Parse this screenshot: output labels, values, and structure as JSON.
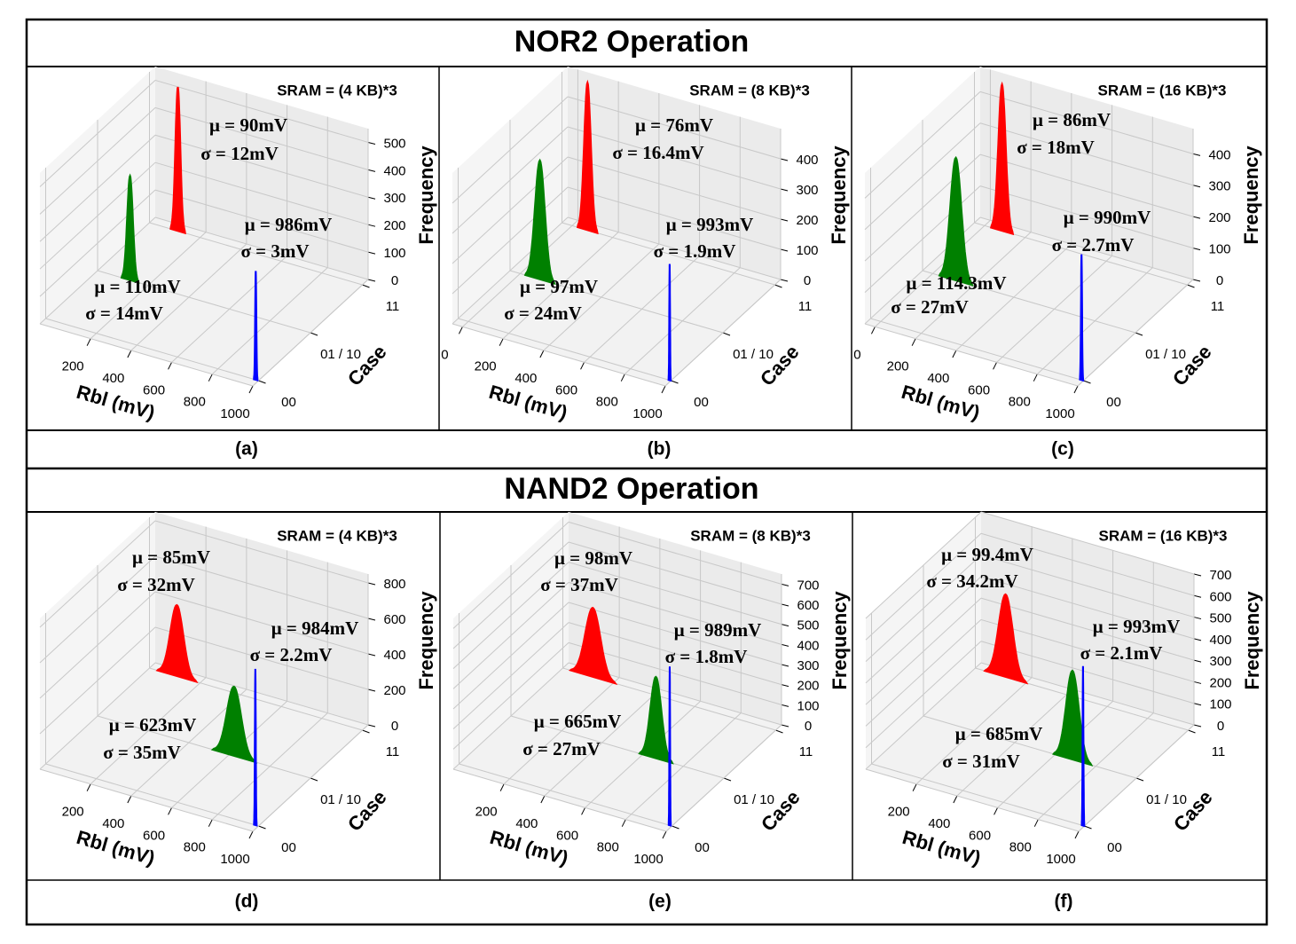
{
  "row_titles": [
    "NOR2 Operation",
    "NAND2 Operation"
  ],
  "chart_data": [
    {
      "type": "histogram3d",
      "caption": "(a)",
      "title": "SRAM = (4 KB)*3",
      "xlabel": "Rbl (mV)",
      "ylabel": "Case",
      "zlabel": "Frequency",
      "xlim": [
        -50,
        1000
      ],
      "xticks": [
        200,
        400,
        600,
        800,
        1000
      ],
      "ycategories": [
        "00",
        "01 / 10",
        "11"
      ],
      "zlim": [
        0,
        550
      ],
      "zticks": [
        0,
        100,
        200,
        300,
        400,
        500
      ],
      "series": [
        {
          "color": "#0000ff",
          "mean": 986,
          "sigma": 3,
          "peak": 397,
          "value_labels": [
            "μ = 986mV",
            "σ = 3mV"
          ]
        },
        {
          "color": "#008000",
          "mean": 110,
          "sigma": 14,
          "peak": 380,
          "value_labels": [
            "μ = 110mV",
            "σ = 14mV"
          ]
        },
        {
          "color": "#ff0000",
          "mean": 90,
          "sigma": 12,
          "peak": 525,
          "value_labels": [
            "μ = 90mV",
            "σ = 12mV"
          ]
        }
      ]
    },
    {
      "type": "histogram3d",
      "caption": "(b)",
      "title": "SRAM = (8 KB)*3",
      "xlabel": "Rbl (mV)",
      "ylabel": "Case",
      "zlabel": "Frequency",
      "xlim": [
        -50,
        1000
      ],
      "xticks": [
        0,
        200,
        400,
        600,
        800,
        1000
      ],
      "ycategories": [
        "00",
        "01 / 10",
        "11"
      ],
      "zlim": [
        0,
        500
      ],
      "zticks": [
        0,
        100,
        200,
        300,
        400
      ],
      "series": [
        {
          "color": "#0000ff",
          "mean": 993,
          "sigma": 1.9,
          "peak": 385,
          "value_labels": [
            "μ = 993mV",
            "σ = 1.9mV"
          ]
        },
        {
          "color": "#008000",
          "mean": 97,
          "sigma": 24,
          "peak": 394,
          "value_labels": [
            "μ = 97mV",
            "σ = 24mV"
          ]
        },
        {
          "color": "#ff0000",
          "mean": 76,
          "sigma": 16.4,
          "peak": 489,
          "value_labels": [
            "μ = 76mV",
            "σ = 16.4mV"
          ]
        }
      ]
    },
    {
      "type": "histogram3d",
      "caption": "(c)",
      "title": "SRAM = (16 KB)*3",
      "xlabel": "Rbl (mV)",
      "ylabel": "Case",
      "zlabel": "Frequency",
      "xlim": [
        -50,
        1000
      ],
      "xticks": [
        0,
        200,
        400,
        600,
        800,
        1000
      ],
      "ycategories": [
        "00",
        "01 / 10",
        "11"
      ],
      "zlim": [
        0,
        480
      ],
      "zticks": [
        0,
        100,
        200,
        300,
        400
      ],
      "series": [
        {
          "color": "#0000ff",
          "mean": 990,
          "sigma": 2.7,
          "peak": 400,
          "value_labels": [
            "μ = 990mV",
            "σ = 2.7mV"
          ]
        },
        {
          "color": "#008000",
          "mean": 114.3,
          "sigma": 27,
          "peak": 390,
          "value_labels": [
            "μ = 114.3mV",
            "σ = 27mV"
          ]
        },
        {
          "color": "#ff0000",
          "mean": 86,
          "sigma": 18,
          "peak": 466,
          "value_labels": [
            "μ = 86mV",
            "σ = 18mV"
          ]
        }
      ]
    },
    {
      "type": "histogram3d",
      "caption": "(d)",
      "title": "SRAM = (4 KB)*3",
      "xlabel": "Rbl (mV)",
      "ylabel": "Case",
      "zlabel": "Frequency",
      "xlim": [
        -50,
        1000
      ],
      "xticks": [
        200,
        400,
        600,
        800,
        1000
      ],
      "ycategories": [
        "00",
        "01 / 10",
        "11"
      ],
      "zlim": [
        0,
        850
      ],
      "zticks": [
        0,
        200,
        400,
        600,
        800
      ],
      "series": [
        {
          "color": "#0000ff",
          "mean": 984,
          "sigma": 2.2,
          "peak": 880,
          "value_labels": [
            "μ = 984mV",
            "σ = 2.2mV"
          ]
        },
        {
          "color": "#008000",
          "mean": 623,
          "sigma": 35,
          "peak": 390,
          "value_labels": [
            "μ = 623mV",
            "σ = 35mV"
          ]
        },
        {
          "color": "#ff0000",
          "mean": 85,
          "sigma": 32,
          "peak": 400,
          "value_labels": [
            "μ = 85mV",
            "σ = 32mV"
          ]
        }
      ]
    },
    {
      "type": "histogram3d",
      "caption": "(e)",
      "title": "SRAM = (8 KB)*3",
      "xlabel": "Rbl (mV)",
      "ylabel": "Case",
      "zlabel": "Frequency",
      "xlim": [
        -50,
        1000
      ],
      "xticks": [
        200,
        400,
        600,
        800,
        1000
      ],
      "ycategories": [
        "00",
        "01 / 10",
        "11"
      ],
      "zlim": [
        0,
        750
      ],
      "zticks": [
        0,
        100,
        200,
        300,
        400,
        500,
        600,
        700
      ],
      "series": [
        {
          "color": "#0000ff",
          "mean": 989,
          "sigma": 1.8,
          "peak": 790,
          "value_labels": [
            "μ = 989mV",
            "σ = 1.8mV"
          ]
        },
        {
          "color": "#008000",
          "mean": 665,
          "sigma": 27,
          "peak": 405,
          "value_labels": [
            "μ = 665mV",
            "σ = 27mV"
          ]
        },
        {
          "color": "#ff0000",
          "mean": 98,
          "sigma": 37,
          "peak": 343,
          "value_labels": [
            "μ = 98mV",
            "σ = 37mV"
          ]
        }
      ]
    },
    {
      "type": "histogram3d",
      "caption": "(f)",
      "title": "SRAM = (16 KB)*3",
      "xlabel": "Rbl (mV)",
      "ylabel": "Case",
      "zlabel": "Frequency",
      "xlim": [
        -50,
        1000
      ],
      "xticks": [
        200,
        400,
        600,
        800,
        1000
      ],
      "ycategories": [
        "00",
        "01 / 10",
        "11"
      ],
      "zlim": [
        0,
        700
      ],
      "zticks": [
        0,
        100,
        200,
        300,
        400,
        500,
        600,
        700
      ],
      "series": [
        {
          "color": "#0000ff",
          "mean": 993,
          "sigma": 2.1,
          "peak": 740,
          "value_labels": [
            "μ = 993mV",
            "σ = 2.1mV"
          ]
        },
        {
          "color": "#008000",
          "mean": 685,
          "sigma": 31,
          "peak": 412,
          "value_labels": [
            "μ = 685mV",
            "σ = 31mV"
          ]
        },
        {
          "color": "#ff0000",
          "mean": 99.4,
          "sigma": 34.2,
          "peak": 383,
          "value_labels": [
            "μ = 99.4mV",
            "σ = 34.2mV"
          ]
        }
      ]
    }
  ]
}
